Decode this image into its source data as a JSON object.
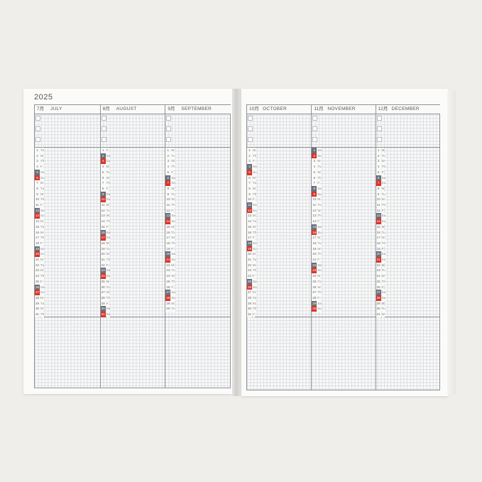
{
  "year": "2025",
  "weekday_labels": [
    "M",
    "Tu",
    "W",
    "Th",
    "F",
    "Sa",
    "Su"
  ],
  "colors": {
    "saturday": "#6b6f7a",
    "sunday": "#d8352a",
    "grid": "#d9dce2",
    "border": "#8f939b"
  },
  "left_page": {
    "months": [
      {
        "num": "7月",
        "name": "JULY",
        "days": 31,
        "first_weekday": "Tu"
      },
      {
        "num": "8月",
        "name": "AUGUST",
        "days": 31,
        "first_weekday": "F"
      },
      {
        "num": "9月",
        "name": "SEPTEMBER",
        "days": 30,
        "first_weekday": "M"
      }
    ]
  },
  "right_page": {
    "months": [
      {
        "num": "10月",
        "name": "OCTOBER",
        "days": 31,
        "first_weekday": "W"
      },
      {
        "num": "11月",
        "name": "NOVEMBER",
        "days": 30,
        "first_weekday": "Sa"
      },
      {
        "num": "12月",
        "name": "DECEMBER",
        "days": 31,
        "first_weekday": "M"
      }
    ]
  }
}
